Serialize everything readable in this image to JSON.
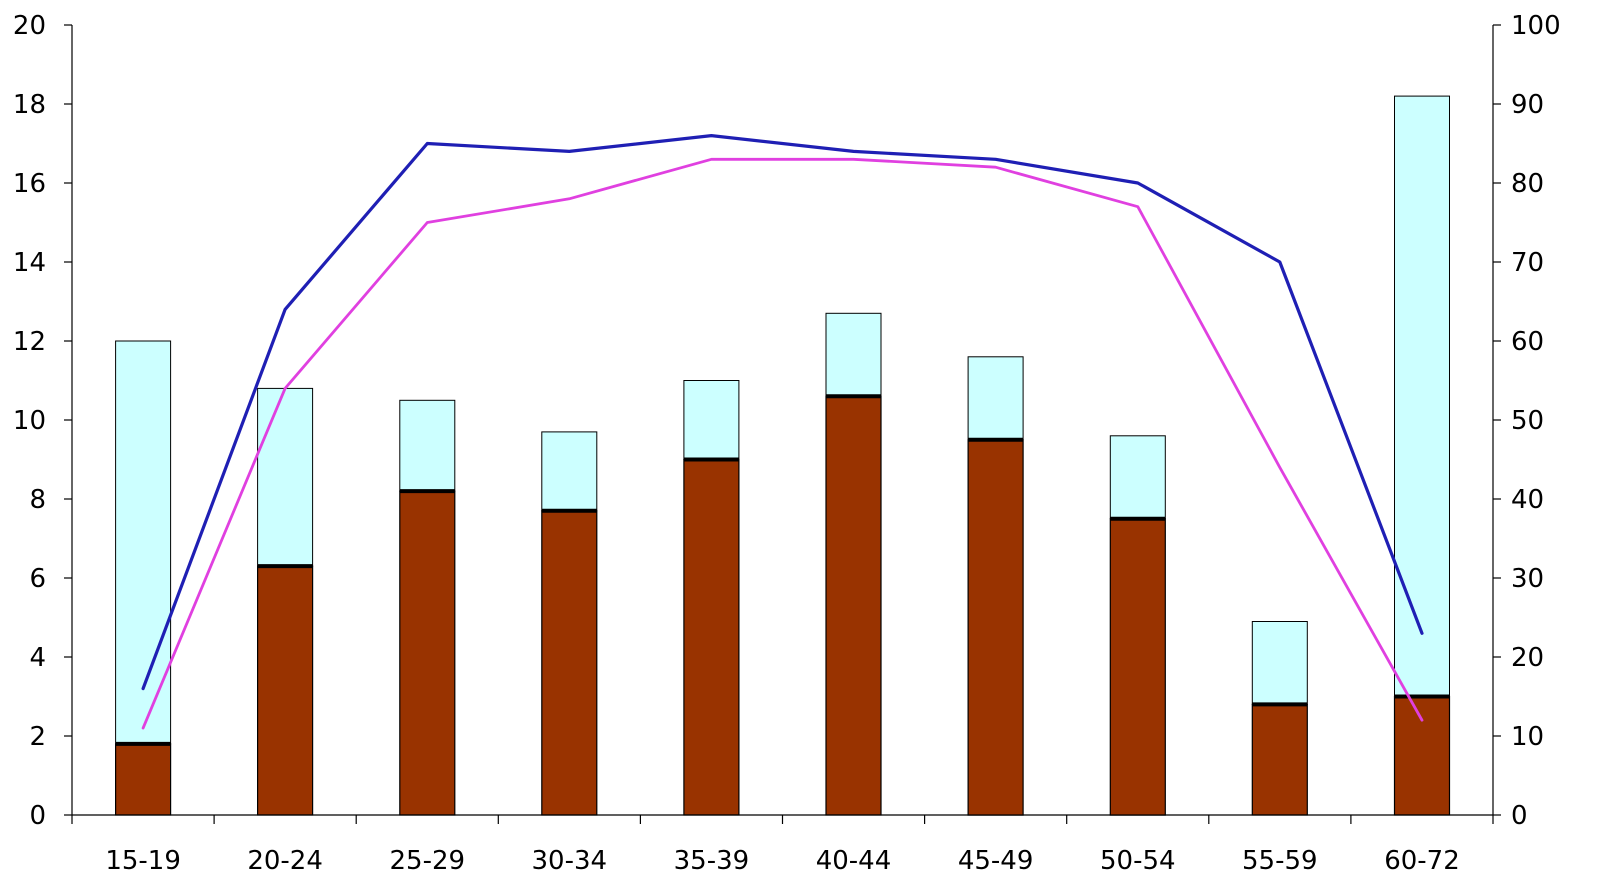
{
  "chart_data": {
    "type": "bar",
    "categories": [
      "15-19",
      "20-24",
      "25-29",
      "30-34",
      "35-39",
      "40-44",
      "45-49",
      "50-54",
      "55-59",
      "60-72"
    ],
    "bar_series": [
      {
        "values": [
          1.8,
          6.3,
          8.2,
          7.7,
          9.0,
          10.6,
          9.5,
          7.5,
          2.8,
          3.0
        ],
        "color": "#993300"
      },
      {
        "values": [
          10.2,
          4.5,
          2.3,
          2.0,
          2.0,
          2.1,
          2.1,
          2.1,
          2.1,
          15.2
        ],
        "color": "#CCFFFF"
      }
    ],
    "line_series": [
      {
        "axis": "right",
        "values": [
          16,
          64,
          85,
          84,
          86,
          84,
          83,
          80,
          70,
          23
        ],
        "color": "#1F1FB4"
      },
      {
        "axis": "right",
        "values": [
          11,
          54,
          75,
          78,
          83,
          83,
          82,
          77,
          44,
          12
        ],
        "color": "#E040E0"
      }
    ],
    "y_left": {
      "min": 0,
      "max": 20,
      "ticks": [
        0,
        2,
        4,
        6,
        8,
        10,
        12,
        14,
        16,
        18,
        20
      ]
    },
    "y_right": {
      "min": 0,
      "max": 100,
      "ticks": [
        0,
        10,
        20,
        30,
        40,
        50,
        60,
        70,
        80,
        90,
        100
      ]
    },
    "grid": false,
    "legend": "none"
  }
}
